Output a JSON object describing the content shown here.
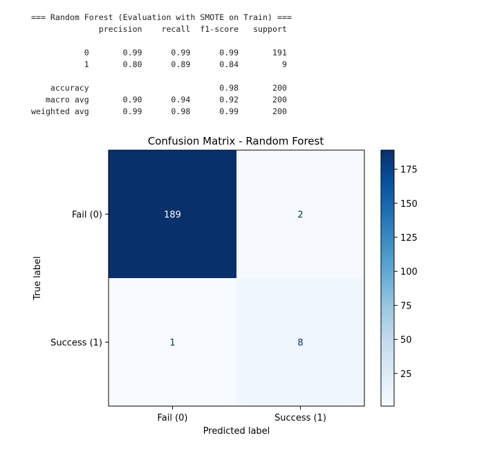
{
  "report": {
    "header": "=== Random Forest (Evaluation with SMOTE on Train) ===",
    "lines": [
      "              precision    recall  f1-score   support",
      "",
      "           0       0.99      0.99      0.99       191",
      "           1       0.80      0.89      0.84         9",
      "",
      "    accuracy                           0.98       200",
      "   macro avg       0.90      0.94      0.92       200",
      "weighted avg       0.99      0.98      0.99       200"
    ]
  },
  "chart_data": {
    "type": "heatmap",
    "title": "Confusion Matrix - Random Forest",
    "xlabel": "Predicted label",
    "ylabel": "True label",
    "x_categories": [
      "Fail (0)",
      "Success (1)"
    ],
    "y_categories": [
      "Fail (0)",
      "Success (1)"
    ],
    "values": [
      [
        189,
        2
      ],
      [
        1,
        8
      ]
    ],
    "colormap": "Blues",
    "colorbar": {
      "min": 1,
      "max": 189,
      "ticks": [
        25,
        50,
        75,
        100,
        125,
        150,
        175
      ]
    },
    "grid": false
  }
}
